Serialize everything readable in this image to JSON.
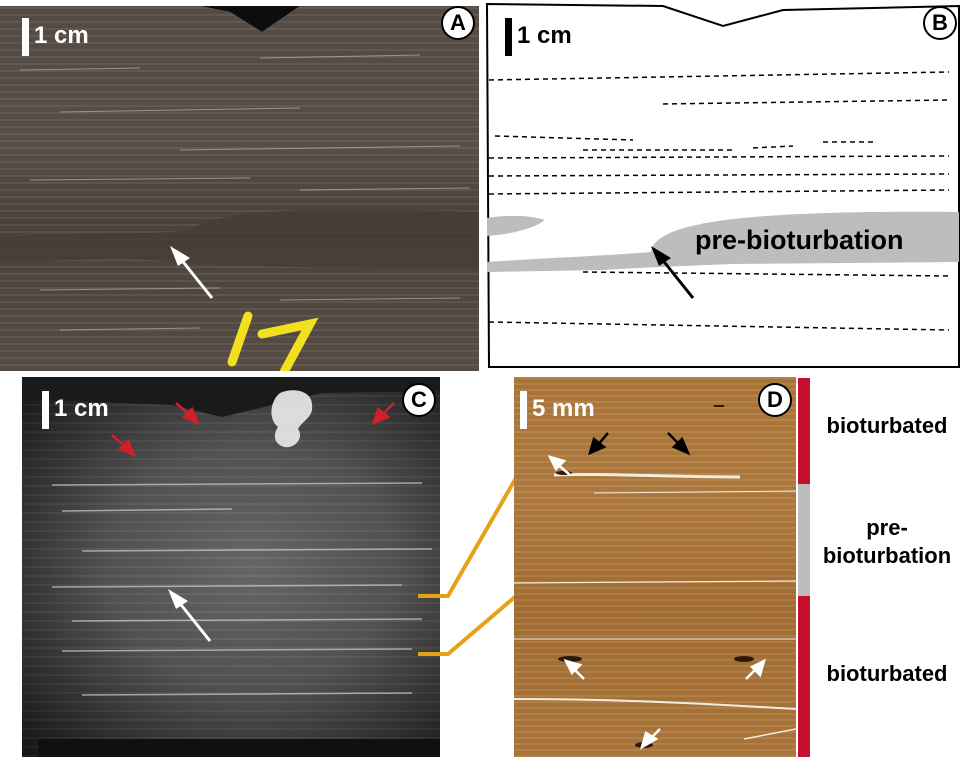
{
  "panels": {
    "a": {
      "letter": "A",
      "scale": "1 cm"
    },
    "b": {
      "letter": "B",
      "scale": "1 cm",
      "annotation": "pre-bioturbation"
    },
    "c": {
      "letter": "C",
      "scale": "1 cm"
    },
    "d": {
      "letter": "D",
      "scale": "5 mm"
    }
  },
  "legend": {
    "top": "bioturbated",
    "middle_line1": "pre-",
    "middle_line2": "bioturbation",
    "bottom": "bioturbated"
  },
  "colors": {
    "bioturbated": "#c8102e",
    "pre_bioturbation": "#bdbdbd",
    "connector": "#e6a11a",
    "label_marker": "#f0e020",
    "red_arrow": "#d0202a"
  }
}
